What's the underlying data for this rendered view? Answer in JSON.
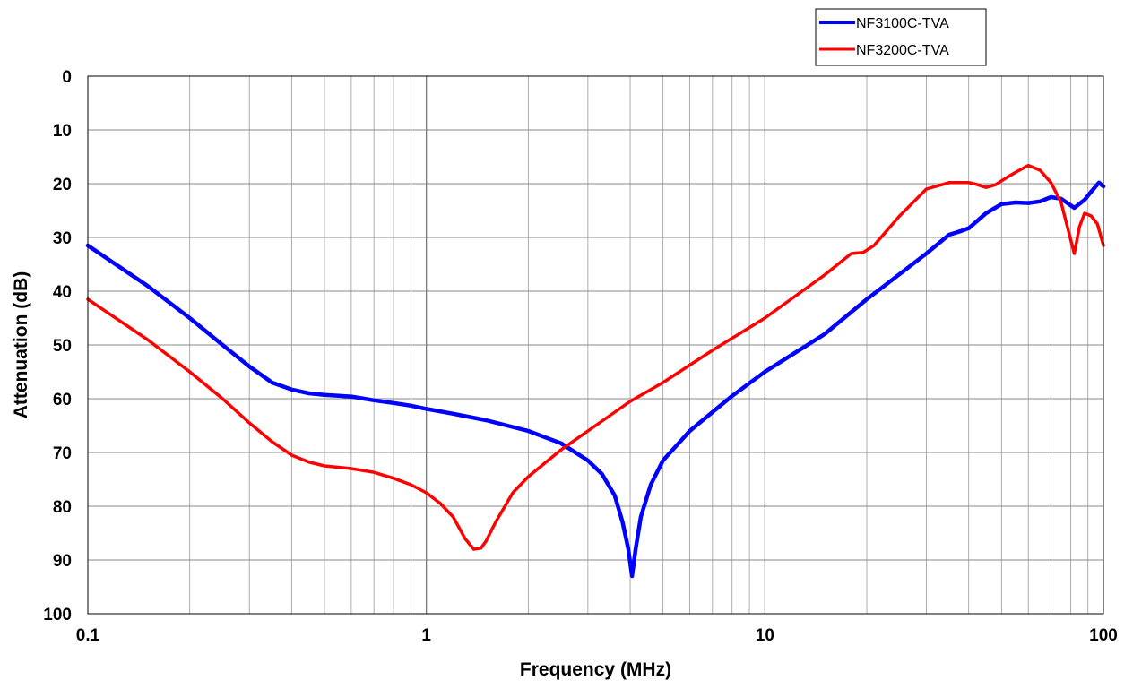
{
  "chart_data": {
    "type": "line",
    "title": "",
    "xlabel": "Frequency (MHz)",
    "ylabel": "Attenuation (dB)",
    "x_scale": "log",
    "xlim": [
      0.1,
      100
    ],
    "ylim": [
      0,
      100
    ],
    "y_inverted": true,
    "grid": true,
    "legend_position": "top-right, above plot",
    "x_ticks": [
      0.1,
      1,
      10,
      100
    ],
    "x_tick_labels": [
      "0.1",
      "1",
      "10",
      "100"
    ],
    "y_ticks": [
      0,
      10,
      20,
      30,
      40,
      50,
      60,
      70,
      80,
      90,
      100
    ],
    "y_tick_labels": [
      "0",
      "10",
      "20",
      "30",
      "40",
      "50",
      "60",
      "70",
      "80",
      "90",
      "100"
    ],
    "series": [
      {
        "name": "NF3100C-TVA",
        "color": "#0000ff",
        "points": [
          [
            0.1,
            31.5
          ],
          [
            0.15,
            39
          ],
          [
            0.2,
            45
          ],
          [
            0.25,
            50
          ],
          [
            0.3,
            54
          ],
          [
            0.35,
            57
          ],
          [
            0.4,
            58.3
          ],
          [
            0.45,
            59
          ],
          [
            0.5,
            59.3
          ],
          [
            0.6,
            59.6
          ],
          [
            0.7,
            60.3
          ],
          [
            0.8,
            60.8
          ],
          [
            0.9,
            61.3
          ],
          [
            1.0,
            61.9
          ],
          [
            1.2,
            62.8
          ],
          [
            1.5,
            64.0
          ],
          [
            2.0,
            66.0
          ],
          [
            2.5,
            68.3
          ],
          [
            3.0,
            71.5
          ],
          [
            3.3,
            74.0
          ],
          [
            3.6,
            78.0
          ],
          [
            3.8,
            83.0
          ],
          [
            3.95,
            88.0
          ],
          [
            4.05,
            93.0
          ],
          [
            4.15,
            88.0
          ],
          [
            4.3,
            82.0
          ],
          [
            4.6,
            76.0
          ],
          [
            5.0,
            71.5
          ],
          [
            6.0,
            66.0
          ],
          [
            7.0,
            62.5
          ],
          [
            8.0,
            59.5
          ],
          [
            10.0,
            55.0
          ],
          [
            15.0,
            48.0
          ],
          [
            20.0,
            41.5
          ],
          [
            30.0,
            33.0
          ],
          [
            35.0,
            29.5
          ],
          [
            38.0,
            28.8
          ],
          [
            40.0,
            28.3
          ],
          [
            45.0,
            25.5
          ],
          [
            50.0,
            23.8
          ],
          [
            55.0,
            23.5
          ],
          [
            60.0,
            23.6
          ],
          [
            65.0,
            23.3
          ],
          [
            70.0,
            22.5
          ],
          [
            75.0,
            22.8
          ],
          [
            82.0,
            24.5
          ],
          [
            88.0,
            23.0
          ],
          [
            92.0,
            21.5
          ],
          [
            97.0,
            19.8
          ],
          [
            100.0,
            20.5
          ]
        ]
      },
      {
        "name": "NF3200C-TVA",
        "color": "#ff0000",
        "points": [
          [
            0.1,
            41.5
          ],
          [
            0.15,
            49
          ],
          [
            0.2,
            55
          ],
          [
            0.25,
            60
          ],
          [
            0.3,
            64.5
          ],
          [
            0.35,
            68.0
          ],
          [
            0.4,
            70.5
          ],
          [
            0.45,
            71.8
          ],
          [
            0.5,
            72.5
          ],
          [
            0.6,
            73.0
          ],
          [
            0.7,
            73.7
          ],
          [
            0.8,
            74.8
          ],
          [
            0.9,
            76.0
          ],
          [
            1.0,
            77.5
          ],
          [
            1.1,
            79.5
          ],
          [
            1.2,
            82.0
          ],
          [
            1.3,
            86.0
          ],
          [
            1.38,
            88.0
          ],
          [
            1.45,
            87.8
          ],
          [
            1.5,
            86.5
          ],
          [
            1.6,
            83.0
          ],
          [
            1.8,
            77.5
          ],
          [
            2.0,
            74.5
          ],
          [
            2.5,
            69.5
          ],
          [
            3.0,
            66.0
          ],
          [
            4.0,
            60.5
          ],
          [
            5.0,
            57.0
          ],
          [
            7.0,
            51.0
          ],
          [
            10.0,
            45.0
          ],
          [
            15.0,
            37.0
          ],
          [
            18.0,
            33.0
          ],
          [
            19.5,
            32.8
          ],
          [
            21.0,
            31.5
          ],
          [
            25.0,
            26.0
          ],
          [
            30.0,
            21.0
          ],
          [
            35.0,
            19.8
          ],
          [
            40.0,
            19.8
          ],
          [
            42.0,
            20.1
          ],
          [
            45.0,
            20.7
          ],
          [
            48.0,
            20.2
          ],
          [
            52.0,
            18.8
          ],
          [
            55.0,
            17.9
          ],
          [
            60.0,
            16.6
          ],
          [
            65.0,
            17.5
          ],
          [
            70.0,
            19.8
          ],
          [
            75.0,
            23.5
          ],
          [
            79.0,
            29.0
          ],
          [
            82.0,
            33.0
          ],
          [
            85.0,
            28.0
          ],
          [
            88.0,
            25.5
          ],
          [
            92.0,
            26.0
          ],
          [
            96.0,
            27.5
          ],
          [
            100.0,
            31.5
          ]
        ]
      }
    ]
  }
}
